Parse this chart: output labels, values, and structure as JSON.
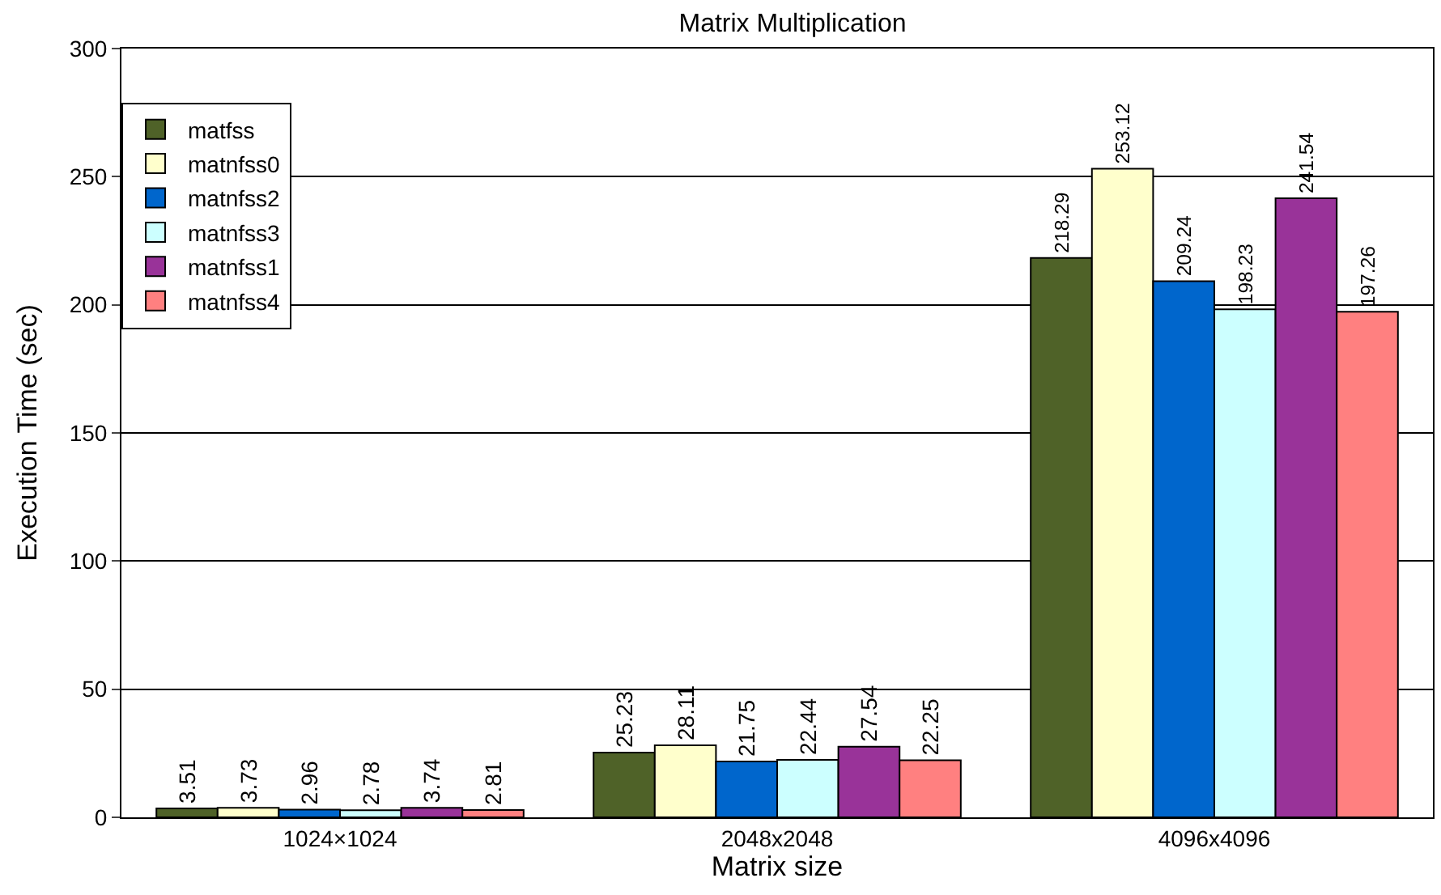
{
  "chart_data": {
    "type": "bar",
    "title": "Matrix Multiplication",
    "xlabel": "Matrix size",
    "ylabel": "Execution Time (sec)",
    "categories": [
      "1024×1024",
      "2048x2048",
      "4096x4096"
    ],
    "series": [
      {
        "name": "matfss",
        "color": "#4f6228",
        "values": [
          3.51,
          25.23,
          218.29
        ]
      },
      {
        "name": "matnfss0",
        "color": "#ffffcc",
        "values": [
          3.73,
          28.11,
          253.12
        ]
      },
      {
        "name": "matnfss2",
        "color": "#0066cc",
        "values": [
          2.96,
          21.75,
          209.24
        ]
      },
      {
        "name": "matnfss3",
        "color": "#ccffff",
        "values": [
          2.78,
          22.44,
          198.23
        ]
      },
      {
        "name": "matnfss1",
        "color": "#993399",
        "values": [
          3.74,
          27.54,
          241.54
        ]
      },
      {
        "name": "matnfss4",
        "color": "#ff8080",
        "values": [
          2.81,
          22.25,
          197.26
        ]
      }
    ],
    "ylim": [
      0,
      300
    ],
    "yticks": [
      0,
      50,
      100,
      150,
      200,
      250,
      300
    ],
    "grid": "y",
    "legend": "top left",
    "data_labels": true
  }
}
